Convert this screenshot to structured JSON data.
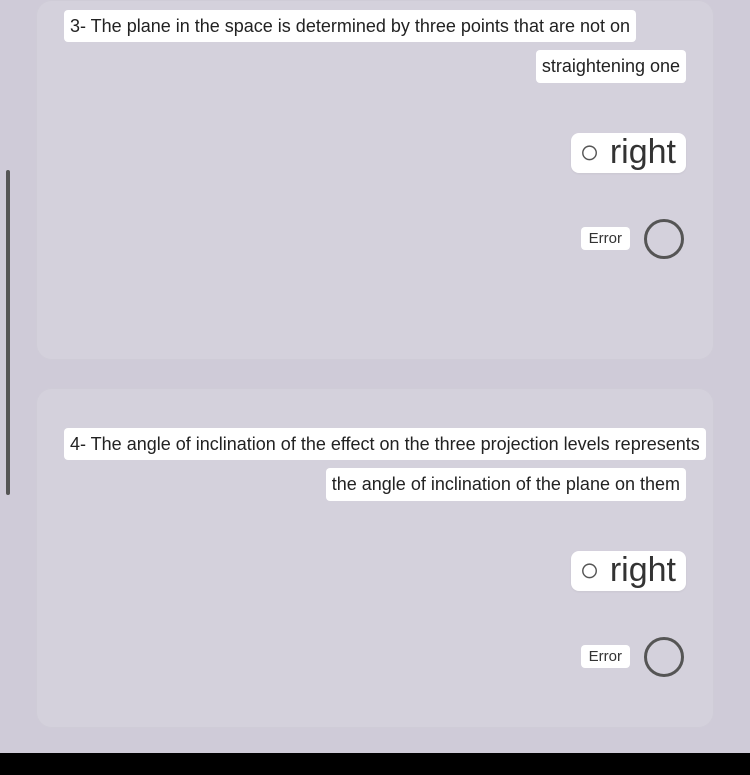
{
  "colors": {
    "page_bg": "#cfcbd8",
    "card_bg": "#d4d1dc",
    "chip_bg": "#ffffff",
    "text": "#222222",
    "radio_border": "#555555",
    "bottom_bar": "#000000"
  },
  "questions": [
    {
      "line1": "3- The plane in the space is determined by three points that are not on",
      "line2": "straightening one",
      "options": {
        "right_label": "right",
        "error_label": "Error"
      }
    },
    {
      "line1": "4- The angle of inclination of the effect on the three projection levels represents",
      "line2": "the angle of inclination of the plane on them",
      "options": {
        "right_label": "right",
        "error_label": "Error"
      }
    }
  ]
}
